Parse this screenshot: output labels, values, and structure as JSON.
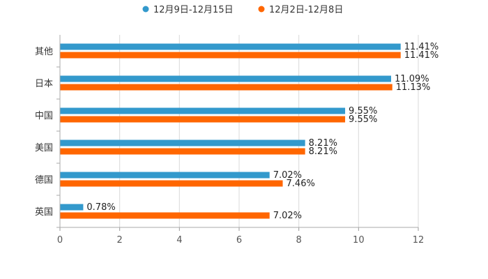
{
  "chart_data": {
    "type": "bar",
    "orientation": "horizontal",
    "title": "",
    "xlabel": "",
    "ylabel": "",
    "categories": [
      "其他",
      "日本",
      "中国",
      "美国",
      "德国",
      "英国"
    ],
    "series": [
      {
        "name": "12月9日-12月15日",
        "color": "#3399cc",
        "values": [
          11.41,
          11.09,
          9.55,
          8.21,
          7.02,
          0.78
        ]
      },
      {
        "name": "12月2日-12月8日",
        "color": "#ff6600",
        "values": [
          11.41,
          11.13,
          9.55,
          8.21,
          7.46,
          7.02
        ]
      }
    ],
    "value_suffix": "%",
    "xlim": [
      0,
      12
    ],
    "xticks": [
      "0",
      "2",
      "4",
      "6",
      "8",
      "10",
      "12"
    ],
    "grid": true,
    "legend_position": "top-center"
  }
}
